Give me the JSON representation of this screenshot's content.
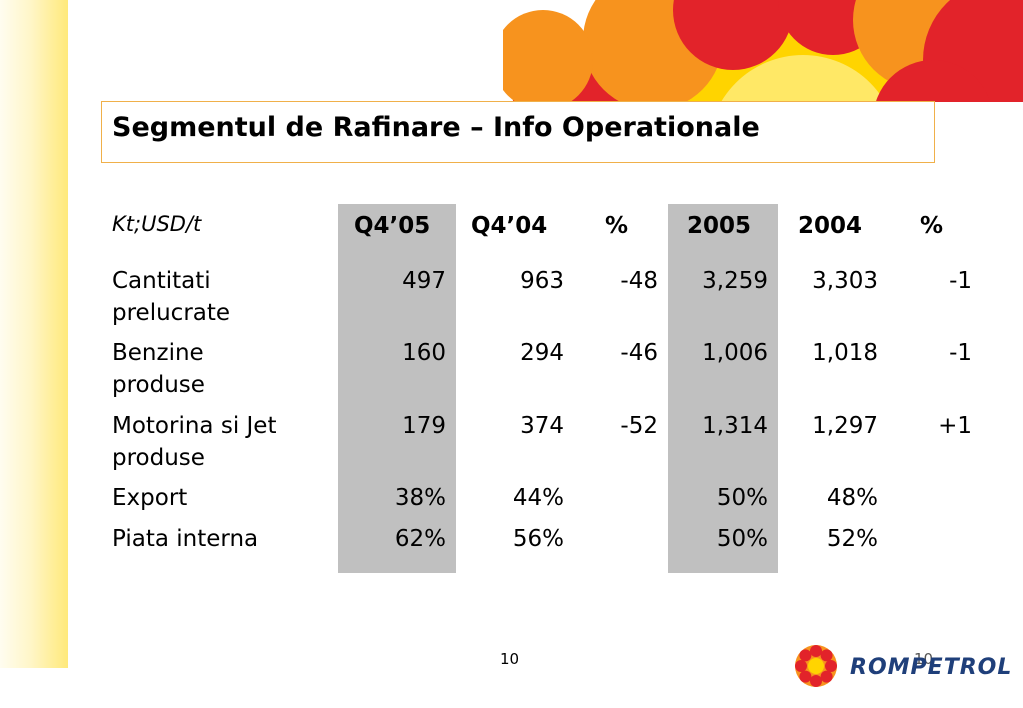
{
  "title": "Segmentul de Rafinare – Info Operationale",
  "unit_label": "Kt;USD/t",
  "columns": [
    "Q4’05",
    "Q4’04",
    "%",
    "2005",
    "2004",
    "%"
  ],
  "rows": [
    {
      "label_1": "Cantitati",
      "label_2": "prelucrate",
      "values": [
        "497",
        "963",
        "-48",
        "3,259",
        "3,303",
        "-1"
      ]
    },
    {
      "label_1": "Benzine",
      "label_2": "produse",
      "values": [
        "160",
        "294",
        "-46",
        "1,006",
        "1,018",
        "-1"
      ]
    },
    {
      "label_1": "Motorina si Jet",
      "label_2": "produse",
      "values": [
        "179",
        "374",
        "-52",
        "1,314",
        "1,297",
        "+1"
      ]
    },
    {
      "label_1": "Export",
      "label_2": "",
      "values": [
        "38%",
        "44%",
        "",
        "50%",
        "48%",
        ""
      ]
    },
    {
      "label_1": "Piata interna",
      "label_2": "",
      "values": [
        "62%",
        "56%",
        "",
        "50%",
        "52%",
        ""
      ]
    }
  ],
  "page_number": "10",
  "page_number_faint": "10",
  "logo": {
    "text": "ROMPETROL",
    "icon": "sun-flower-icon"
  },
  "colors": {
    "highlight_column": "#c0c0c0",
    "title_border": "#f0b04a",
    "brand_red": "#e2232a",
    "brand_orange": "#f7931e",
    "brand_yellow": "#ffd400"
  }
}
